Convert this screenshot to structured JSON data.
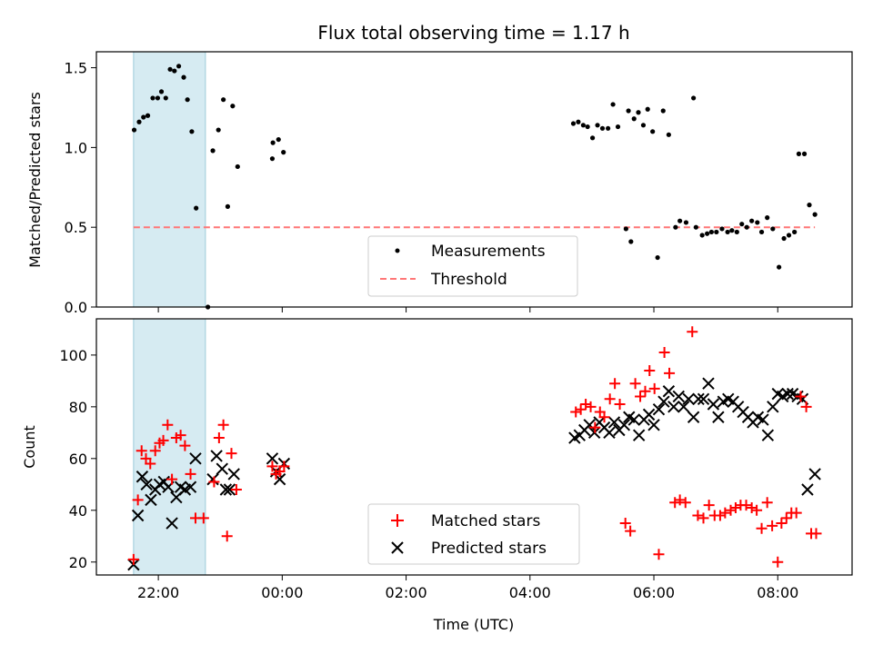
{
  "chart_data": [
    {
      "type": "scatter",
      "title": "Flux total observing time = 1.17 h",
      "ylabel": "Matched/Predicted stars",
      "xlabel": "",
      "ylim": [
        0,
        1.6
      ],
      "yticks": [
        0.0,
        0.5,
        1.0,
        1.5
      ],
      "ytick_labels": [
        "0.0",
        "0.5",
        "1.0",
        "1.5"
      ],
      "highlight_band_hours": [
        -2.4,
        -1.24
      ],
      "threshold": 0.5,
      "legend": {
        "placement": "lower-center",
        "entries": [
          "Measurements",
          "Threshold"
        ]
      },
      "series": [
        {
          "name": "Measurements",
          "color": "#000000",
          "points": [
            [
              -2.39,
              1.11
            ],
            [
              -2.31,
              1.16
            ],
            [
              -2.24,
              1.19
            ],
            [
              -2.17,
              1.2
            ],
            [
              -2.09,
              1.31
            ],
            [
              -2.01,
              1.31
            ],
            [
              -1.95,
              1.35
            ],
            [
              -1.88,
              1.31
            ],
            [
              -1.81,
              1.49
            ],
            [
              -1.74,
              1.48
            ],
            [
              -1.67,
              1.51
            ],
            [
              -1.59,
              1.44
            ],
            [
              -1.53,
              1.3
            ],
            [
              -1.46,
              1.1
            ],
            [
              -1.39,
              0.62
            ],
            [
              -1.2,
              0.0
            ],
            [
              -1.12,
              0.98
            ],
            [
              -1.03,
              1.11
            ],
            [
              -0.95,
              1.3
            ],
            [
              -0.88,
              0.63
            ],
            [
              -0.8,
              1.26
            ],
            [
              -0.72,
              0.88
            ],
            [
              -0.16,
              0.93
            ],
            [
              -0.15,
              1.03
            ],
            [
              -0.06,
              1.05
            ],
            [
              0.02,
              0.97
            ],
            [
              4.7,
              1.15
            ],
            [
              4.78,
              1.16
            ],
            [
              4.86,
              1.14
            ],
            [
              4.93,
              1.13
            ],
            [
              5.01,
              1.06
            ],
            [
              5.09,
              1.14
            ],
            [
              5.17,
              1.12
            ],
            [
              5.26,
              1.12
            ],
            [
              5.34,
              1.27
            ],
            [
              5.42,
              1.13
            ],
            [
              5.59,
              1.23
            ],
            [
              5.68,
              1.18
            ],
            [
              5.75,
              1.22
            ],
            [
              5.83,
              1.14
            ],
            [
              5.9,
              1.24
            ],
            [
              5.98,
              1.1
            ],
            [
              6.15,
              1.23
            ],
            [
              6.24,
              1.08
            ],
            [
              6.64,
              1.31
            ],
            [
              5.55,
              0.49
            ],
            [
              5.63,
              0.41
            ],
            [
              6.06,
              0.31
            ],
            [
              6.35,
              0.5
            ],
            [
              6.42,
              0.54
            ],
            [
              6.52,
              0.53
            ],
            [
              6.68,
              0.5
            ],
            [
              6.78,
              0.45
            ],
            [
              6.86,
              0.46
            ],
            [
              6.93,
              0.47
            ],
            [
              7.01,
              0.47
            ],
            [
              7.1,
              0.49
            ],
            [
              7.19,
              0.47
            ],
            [
              7.26,
              0.48
            ],
            [
              7.34,
              0.47
            ],
            [
              7.42,
              0.52
            ],
            [
              7.5,
              0.5
            ],
            [
              7.58,
              0.54
            ],
            [
              7.67,
              0.53
            ],
            [
              7.74,
              0.47
            ],
            [
              7.83,
              0.56
            ],
            [
              7.92,
              0.49
            ],
            [
              8.02,
              0.25
            ],
            [
              8.1,
              0.43
            ],
            [
              8.18,
              0.45
            ],
            [
              8.27,
              0.47
            ],
            [
              8.34,
              0.96
            ],
            [
              8.43,
              0.96
            ],
            [
              8.51,
              0.64
            ],
            [
              8.6,
              0.58
            ]
          ]
        }
      ],
      "threshold_series": {
        "name": "Threshold",
        "color": "#ff7777",
        "x_range": [
          -2.4,
          8.6
        ],
        "value": 0.5
      }
    },
    {
      "type": "scatter",
      "title": "",
      "ylabel": "Count",
      "xlabel": "Time (UTC)",
      "ylim": [
        15,
        114
      ],
      "xlim_hours": [
        -3.0,
        9.2
      ],
      "yticks": [
        20,
        40,
        60,
        80,
        100
      ],
      "ytick_labels": [
        "20",
        "40",
        "60",
        "80",
        "100"
      ],
      "xticks_hours": [
        -2,
        0,
        2,
        4,
        6,
        8
      ],
      "xtick_labels": [
        "22:00",
        "00:00",
        "02:00",
        "04:00",
        "06:00",
        "08:00"
      ],
      "highlight_band_hours": [
        -2.4,
        -1.24
      ],
      "legend": {
        "placement": "lower-center",
        "entries": [
          "Matched stars",
          "Predicted stars"
        ]
      },
      "series": [
        {
          "name": "Matched stars",
          "marker": "plus",
          "color": "#ff0000",
          "points": [
            [
              -2.4,
              21
            ],
            [
              -2.33,
              44
            ],
            [
              -2.27,
              63
            ],
            [
              -2.2,
              60
            ],
            [
              -2.13,
              58
            ],
            [
              -2.05,
              63
            ],
            [
              -1.98,
              66
            ],
            [
              -1.92,
              67
            ],
            [
              -1.85,
              73
            ],
            [
              -1.78,
              52
            ],
            [
              -1.71,
              68
            ],
            [
              -1.64,
              69
            ],
            [
              -1.57,
              65
            ],
            [
              -1.48,
              54
            ],
            [
              -1.4,
              37
            ],
            [
              -1.27,
              37
            ],
            [
              -1.1,
              51
            ],
            [
              -1.02,
              68
            ],
            [
              -0.95,
              73
            ],
            [
              -0.89,
              30
            ],
            [
              -0.82,
              62
            ],
            [
              -0.74,
              48
            ],
            [
              -0.16,
              57
            ],
            [
              -0.1,
              54
            ],
            [
              -0.04,
              55
            ],
            [
              0.03,
              57
            ],
            [
              4.74,
              78
            ],
            [
              4.82,
              79
            ],
            [
              4.9,
              81
            ],
            [
              4.98,
              80
            ],
            [
              5.05,
              72
            ],
            [
              5.13,
              78
            ],
            [
              5.2,
              76
            ],
            [
              5.29,
              83
            ],
            [
              5.37,
              89
            ],
            [
              5.45,
              81
            ],
            [
              5.54,
              35
            ],
            [
              5.62,
              32
            ],
            [
              5.7,
              89
            ],
            [
              5.78,
              84
            ],
            [
              5.86,
              86
            ],
            [
              5.93,
              94
            ],
            [
              6.01,
              87
            ],
            [
              6.08,
              23
            ],
            [
              6.17,
              101
            ],
            [
              6.25,
              93
            ],
            [
              6.34,
              43
            ],
            [
              6.42,
              44
            ],
            [
              6.51,
              43
            ],
            [
              6.62,
              109
            ],
            [
              6.71,
              38
            ],
            [
              6.8,
              37
            ],
            [
              6.89,
              42
            ],
            [
              6.98,
              38
            ],
            [
              7.07,
              38
            ],
            [
              7.15,
              39
            ],
            [
              7.24,
              40
            ],
            [
              7.32,
              41
            ],
            [
              7.4,
              42
            ],
            [
              7.49,
              42
            ],
            [
              7.58,
              41
            ],
            [
              7.66,
              40
            ],
            [
              7.74,
              33
            ],
            [
              7.83,
              43
            ],
            [
              7.91,
              34
            ],
            [
              8.0,
              20
            ],
            [
              8.06,
              35
            ],
            [
              8.14,
              37
            ],
            [
              8.22,
              39
            ],
            [
              8.3,
              39
            ],
            [
              8.37,
              84
            ],
            [
              8.46,
              80
            ],
            [
              8.54,
              31
            ],
            [
              8.62,
              31
            ]
          ]
        },
        {
          "name": "Predicted stars",
          "marker": "x",
          "color": "#000000",
          "points": [
            [
              -2.4,
              19
            ],
            [
              -2.33,
              38
            ],
            [
              -2.26,
              53
            ],
            [
              -2.19,
              50
            ],
            [
              -2.12,
              44
            ],
            [
              -2.05,
              48
            ],
            [
              -1.98,
              50
            ],
            [
              -1.91,
              51
            ],
            [
              -1.84,
              49
            ],
            [
              -1.78,
              35
            ],
            [
              -1.71,
              45
            ],
            [
              -1.64,
              49
            ],
            [
              -1.57,
              48
            ],
            [
              -1.48,
              49
            ],
            [
              -1.4,
              60
            ],
            [
              -1.06,
              61
            ],
            [
              -1.12,
              52
            ],
            [
              -0.97,
              56
            ],
            [
              -0.91,
              48
            ],
            [
              -0.85,
              48
            ],
            [
              -0.78,
              54
            ],
            [
              -0.16,
              60
            ],
            [
              -0.1,
              55
            ],
            [
              -0.04,
              52
            ],
            [
              0.03,
              58
            ],
            [
              4.72,
              68
            ],
            [
              4.8,
              69
            ],
            [
              4.88,
              71
            ],
            [
              4.96,
              73
            ],
            [
              5.04,
              70
            ],
            [
              5.12,
              74
            ],
            [
              5.2,
              72
            ],
            [
              5.28,
              70
            ],
            [
              5.36,
              74
            ],
            [
              5.44,
              71
            ],
            [
              5.52,
              73
            ],
            [
              5.6,
              76
            ],
            [
              5.68,
              75
            ],
            [
              5.76,
              69
            ],
            [
              5.84,
              75
            ],
            [
              5.92,
              77
            ],
            [
              6.0,
              73
            ],
            [
              6.08,
              79
            ],
            [
              6.16,
              82
            ],
            [
              6.24,
              86
            ],
            [
              6.32,
              80
            ],
            [
              6.4,
              84
            ],
            [
              6.48,
              80
            ],
            [
              6.56,
              83
            ],
            [
              6.64,
              76
            ],
            [
              6.72,
              83
            ],
            [
              6.8,
              83
            ],
            [
              6.88,
              89
            ],
            [
              6.96,
              81
            ],
            [
              7.04,
              76
            ],
            [
              7.12,
              82
            ],
            [
              7.2,
              83
            ],
            [
              7.28,
              82
            ],
            [
              7.36,
              80
            ],
            [
              7.44,
              78
            ],
            [
              7.52,
              76
            ],
            [
              7.6,
              74
            ],
            [
              7.68,
              76
            ],
            [
              7.76,
              75
            ],
            [
              7.84,
              69
            ],
            [
              7.92,
              80
            ],
            [
              8.0,
              85
            ],
            [
              8.08,
              84
            ],
            [
              8.16,
              85
            ],
            [
              8.24,
              85
            ],
            [
              8.32,
              84
            ],
            [
              8.4,
              83
            ],
            [
              8.48,
              48
            ],
            [
              8.6,
              54
            ]
          ]
        }
      ]
    }
  ]
}
